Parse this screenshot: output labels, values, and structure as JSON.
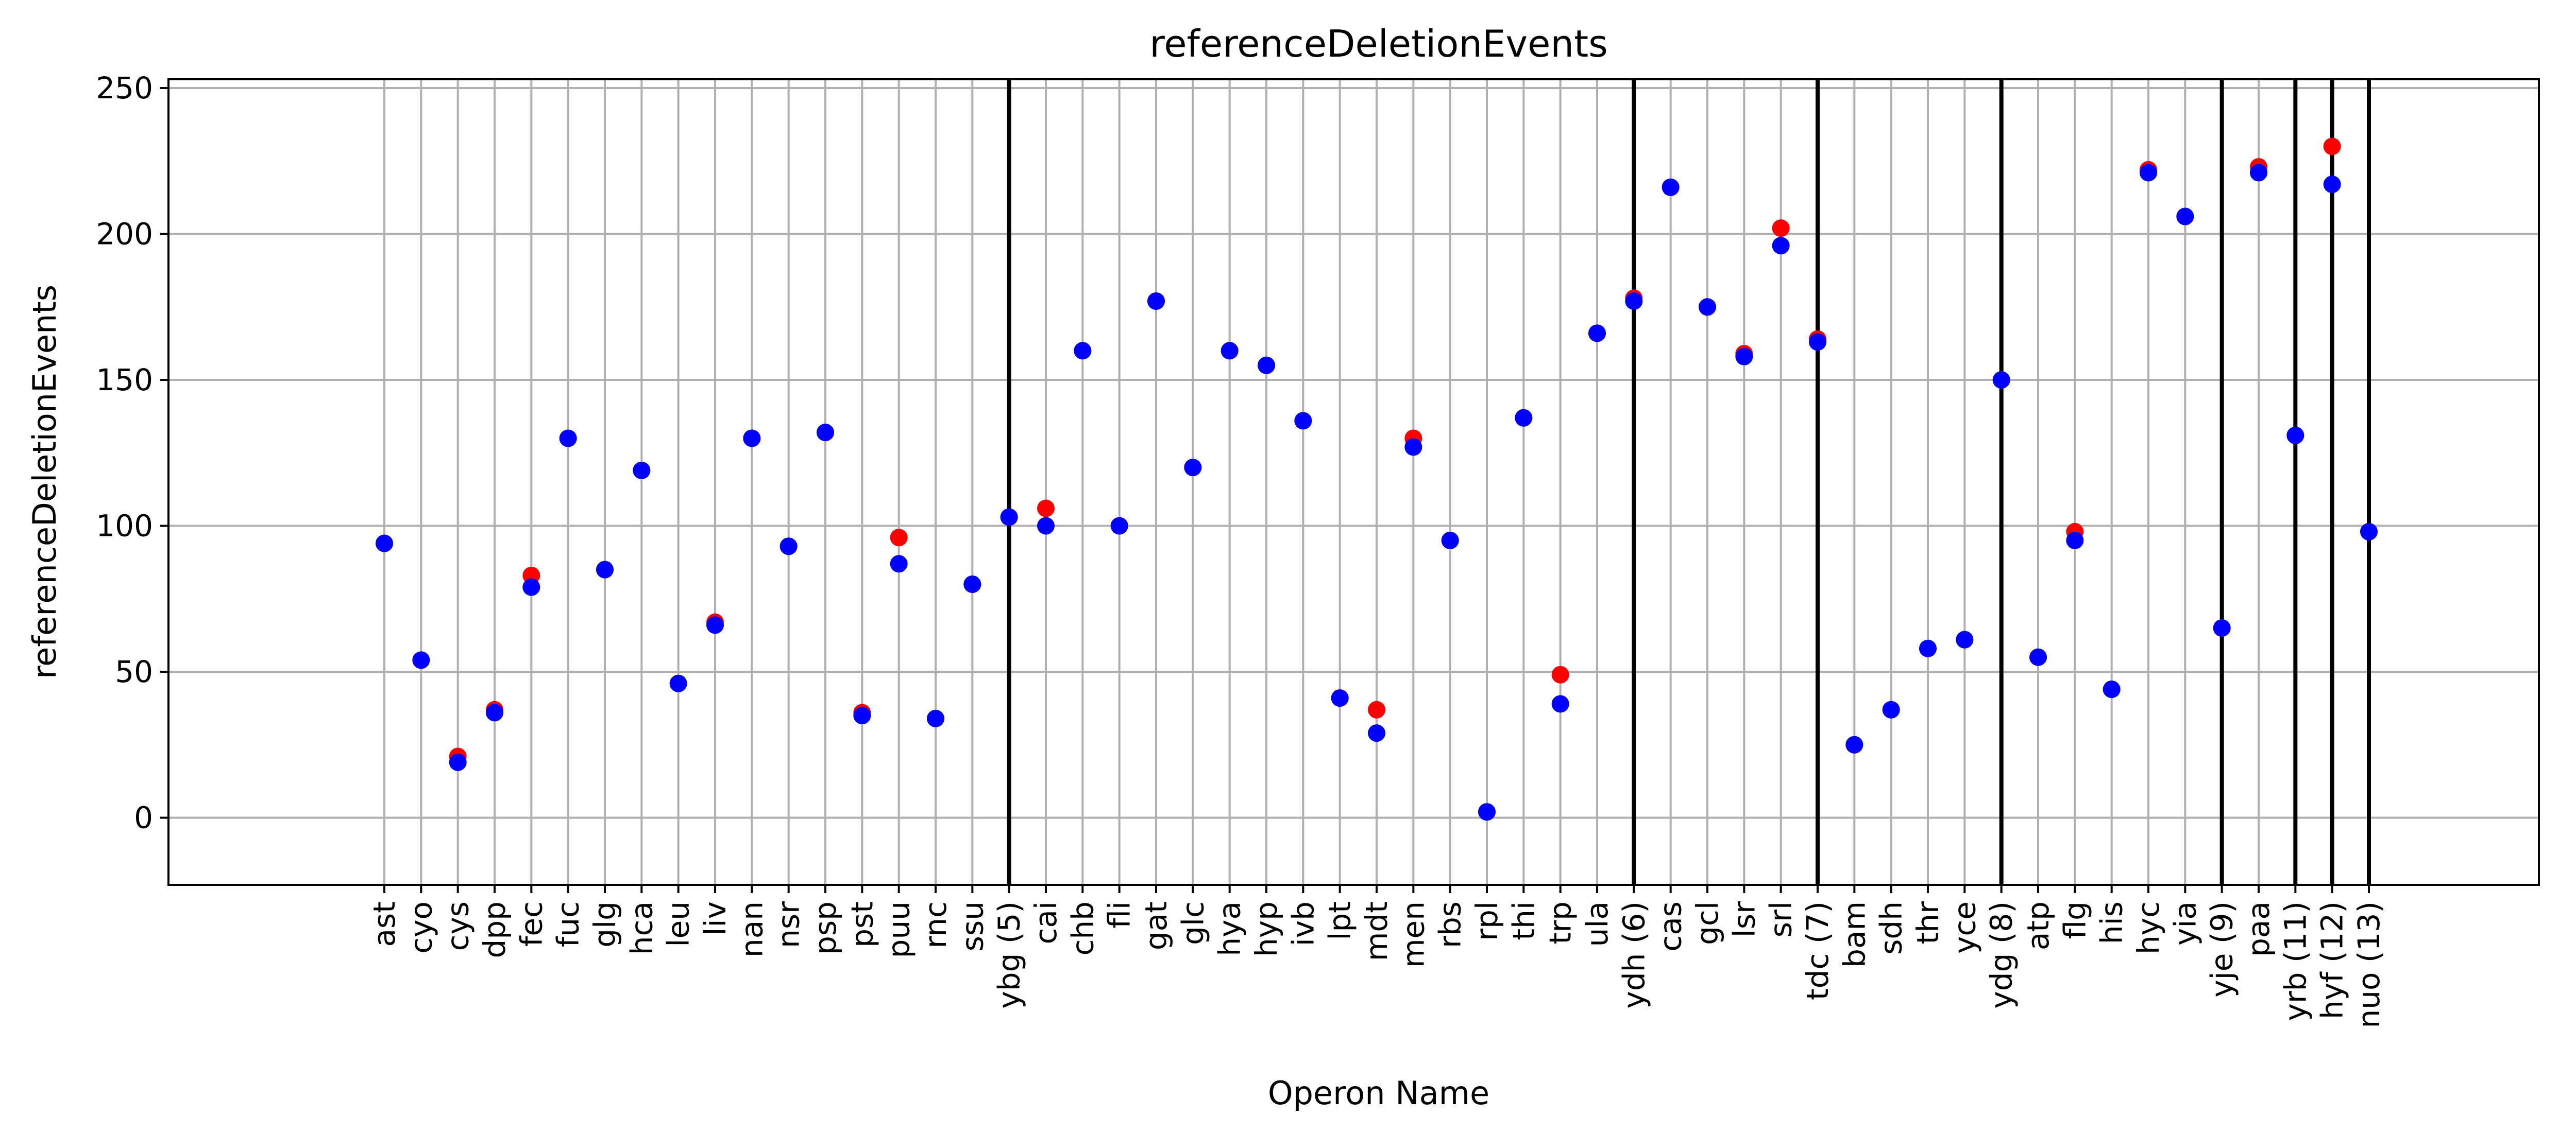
{
  "chart_data": {
    "type": "scatter",
    "title": "referenceDeletionEvents",
    "xlabel": "Operon Name",
    "ylabel": "referenceDeletionEvents",
    "ylim": [
      -23,
      253
    ],
    "yticks": [
      0,
      50,
      100,
      150,
      200,
      250
    ],
    "grid": true,
    "categories": [
      "ast",
      "cyo",
      "cys",
      "dpp",
      "fec",
      "fuc",
      "glg",
      "hca",
      "leu",
      "liv",
      "nan",
      "nsr",
      "psp",
      "pst",
      "puu",
      "rnc",
      "ssu",
      "ybg (5)",
      "cai",
      "chb",
      "fli",
      "gat",
      "glc",
      "hya",
      "hyp",
      "ivb",
      "lpt",
      "mdt",
      "men",
      "rbs",
      "rpl",
      "thi",
      "trp",
      "ula",
      "ydh (6)",
      "cas",
      "gcl",
      "lsr",
      "srl",
      "tdc (7)",
      "bam",
      "sdh",
      "thr",
      "yce",
      "ydg (8)",
      "atp",
      "flg",
      "his",
      "hyc",
      "yia",
      "yje (9)",
      "paa",
      "yrb (11)",
      "hyf (12)",
      "nuo (13)"
    ],
    "separators": [
      "ybg (5)",
      "ydh (6)",
      "tdc (7)",
      "ydg (8)",
      "yje (9)",
      "yrb (11)",
      "hyf (12)",
      "nuo (13)"
    ],
    "series": [
      {
        "color": "#ff0000",
        "values": [
          94,
          54,
          21,
          37,
          83,
          130,
          85,
          119,
          46,
          67,
          130,
          93,
          132,
          36,
          96,
          34,
          80,
          103,
          106,
          160,
          100,
          177,
          120,
          160,
          155,
          136,
          41,
          37,
          130,
          95,
          2,
          137,
          49,
          166,
          178,
          216,
          175,
          159,
          202,
          164,
          25,
          37,
          58,
          61,
          150,
          55,
          98,
          44,
          222,
          206,
          65,
          223,
          131,
          230,
          98
        ]
      },
      {
        "color": "#0000ff",
        "values": [
          94,
          54,
          19,
          36,
          79,
          130,
          85,
          119,
          46,
          66,
          130,
          93,
          132,
          35,
          87,
          34,
          80,
          103,
          100,
          160,
          100,
          177,
          120,
          160,
          155,
          136,
          41,
          29,
          127,
          95,
          2,
          137,
          39,
          166,
          177,
          216,
          175,
          158,
          196,
          163,
          25,
          37,
          58,
          61,
          150,
          55,
          95,
          44,
          221,
          206,
          65,
          221,
          131,
          217,
          98
        ]
      }
    ]
  }
}
